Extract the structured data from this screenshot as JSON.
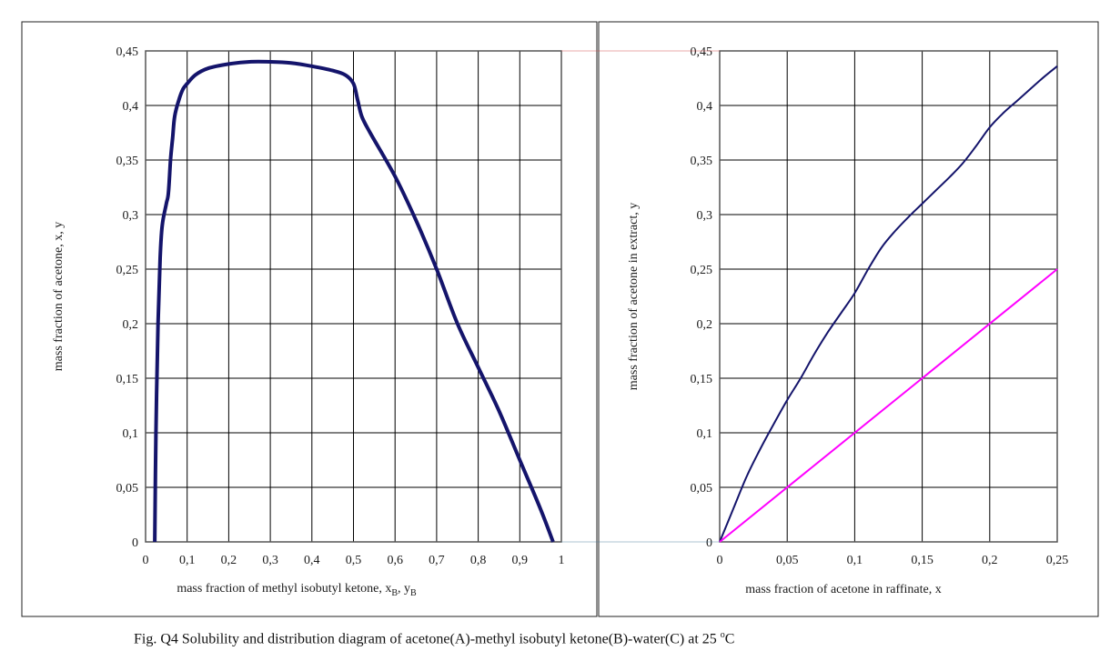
{
  "caption": {
    "text": "Fig. Q4 Solubility and distribution diagram of acetone(A)-methyl isobutyl ketone(B)-water(C) at 25 ",
    "degree_symbol": "o",
    "unit": "C"
  },
  "colors": {
    "curve": "#14146b",
    "diagonal": "#ff00ff",
    "grid": "#000000",
    "connector": "#d04040"
  },
  "chart_data": [
    {
      "type": "line",
      "title": "",
      "xlabel": "mass fraction of methyl isobutyl ketone, x",
      "xlabel_sub1": "B",
      "xlabel_mid": ", y",
      "xlabel_sub2": "B",
      "ylabel": "mass fraction of acetone, x, y",
      "xlim": [
        0,
        1
      ],
      "ylim": [
        0,
        0.45
      ],
      "x_ticks": [
        0,
        0.1,
        0.2,
        0.3,
        0.4,
        0.5,
        0.6,
        0.7,
        0.8,
        0.9,
        1
      ],
      "x_tick_labels": [
        "0",
        "0,1",
        "0,2",
        "0,3",
        "0,4",
        "0,5",
        "0,6",
        "0,7",
        "0,8",
        "0,9",
        "1"
      ],
      "y_ticks": [
        0,
        0.05,
        0.1,
        0.15,
        0.2,
        0.25,
        0.3,
        0.35,
        0.4,
        0.45
      ],
      "y_tick_labels": [
        "0",
        "0,05",
        "0,1",
        "0,15",
        "0,2",
        "0,25",
        "0,3",
        "0,35",
        "0,4",
        "0,45"
      ],
      "grid": true,
      "series": [
        {
          "name": "solubility curve",
          "x": [
            0.022,
            0.025,
            0.03,
            0.035,
            0.04,
            0.05,
            0.055,
            0.06,
            0.065,
            0.07,
            0.08,
            0.09,
            0.1,
            0.12,
            0.15,
            0.2,
            0.25,
            0.3,
            0.35,
            0.4,
            0.45,
            0.48,
            0.5,
            0.51,
            0.52,
            0.54,
            0.6,
            0.65,
            0.7,
            0.75,
            0.8,
            0.85,
            0.9,
            0.95,
            0.98
          ],
          "y": [
            0,
            0.1,
            0.2,
            0.26,
            0.29,
            0.31,
            0.32,
            0.35,
            0.37,
            0.39,
            0.405,
            0.415,
            0.42,
            0.428,
            0.434,
            0.438,
            0.44,
            0.44,
            0.439,
            0.436,
            0.432,
            0.428,
            0.42,
            0.405,
            0.39,
            0.375,
            0.335,
            0.295,
            0.25,
            0.2,
            0.16,
            0.12,
            0.075,
            0.03,
            0
          ]
        }
      ]
    },
    {
      "type": "line",
      "title": "",
      "xlabel": "mass fraction of acetone in raffinate, x",
      "ylabel": "mass fraction of acetone in extract, y",
      "xlim": [
        0,
        0.25
      ],
      "ylim": [
        0,
        0.45
      ],
      "x_ticks": [
        0,
        0.05,
        0.1,
        0.15,
        0.2,
        0.25
      ],
      "x_tick_labels": [
        "0",
        "0,05",
        "0,1",
        "0,15",
        "0,2",
        "0,25"
      ],
      "y_ticks": [
        0,
        0.05,
        0.1,
        0.15,
        0.2,
        0.25,
        0.3,
        0.35,
        0.4,
        0.45
      ],
      "y_tick_labels": [
        "0",
        "0,05",
        "0,1",
        "0,15",
        "0,2",
        "0,25",
        "0,3",
        "0,35",
        "0,4",
        "0,45"
      ],
      "grid": true,
      "series": [
        {
          "name": "distribution curve",
          "x": [
            0,
            0.01,
            0.02,
            0.03,
            0.04,
            0.05,
            0.06,
            0.07,
            0.08,
            0.09,
            0.1,
            0.11,
            0.12,
            0.13,
            0.14,
            0.15,
            0.16,
            0.17,
            0.18,
            0.19,
            0.2,
            0.21,
            0.22,
            0.23,
            0.24,
            0.25
          ],
          "y": [
            0,
            0.03,
            0.06,
            0.085,
            0.108,
            0.13,
            0.15,
            0.172,
            0.192,
            0.21,
            0.228,
            0.25,
            0.27,
            0.285,
            0.298,
            0.31,
            0.322,
            0.334,
            0.347,
            0.363,
            0.38,
            0.393,
            0.404,
            0.415,
            0.426,
            0.436
          ]
        },
        {
          "name": "diagonal y = x",
          "x": [
            0,
            0.25
          ],
          "y": [
            0,
            0.25
          ]
        }
      ]
    }
  ]
}
